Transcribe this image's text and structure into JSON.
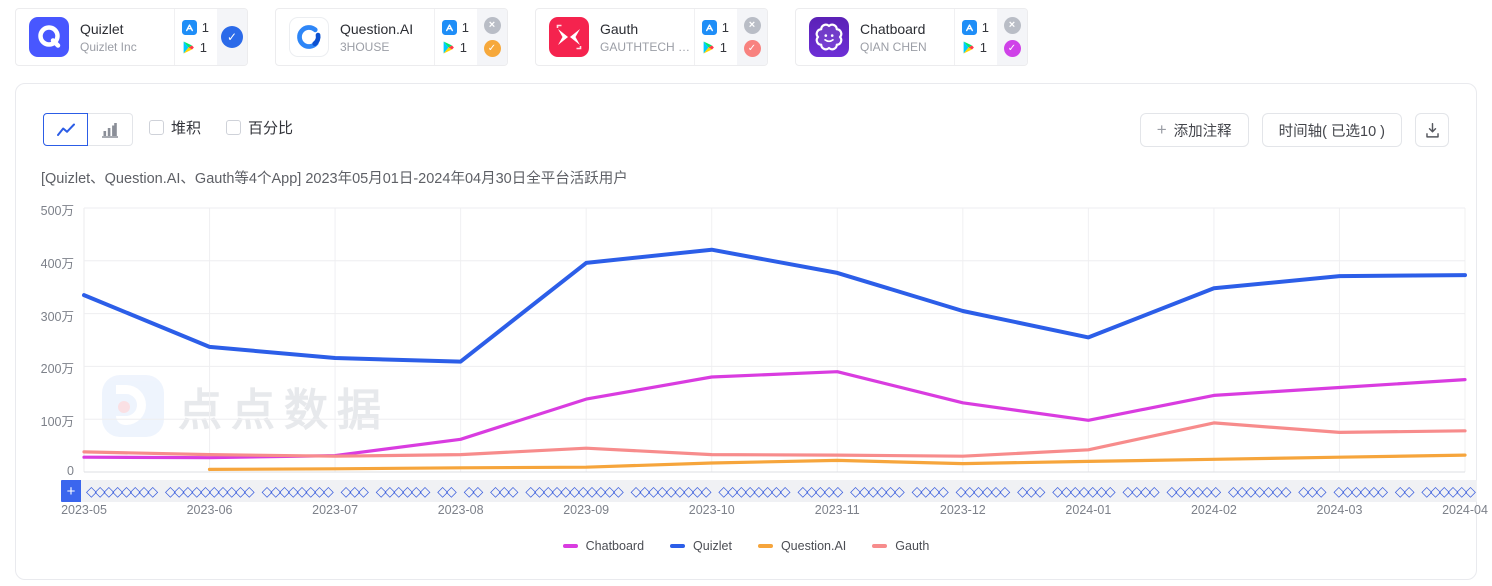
{
  "app_cards": [
    {
      "name": "Quizlet",
      "company": "Quizlet Inc",
      "appstore_count": "1",
      "playstore_count": "1",
      "accent": "#2b6ae9",
      "has_close": false
    },
    {
      "name": "Question.AI",
      "company": "3HOUSE",
      "appstore_count": "1",
      "playstore_count": "1",
      "accent": "#f6a83b",
      "has_close": true
    },
    {
      "name": "Gauth",
      "company": "GAUTHTECH PT...",
      "appstore_count": "1",
      "playstore_count": "1",
      "accent": "#f8827f",
      "has_close": true
    },
    {
      "name": "Chatboard",
      "company": "QIAN CHEN",
      "appstore_count": "1",
      "playstore_count": "1",
      "accent": "#cf42e8",
      "has_close": true
    }
  ],
  "toolbar": {
    "stacked_label": "堆积",
    "percent_label": "百分比",
    "add_annotation_label": "添加注释",
    "timeline_label": "时间轴( 已选10 )"
  },
  "chart_title": "[Quizlet、Question.AI、Gauth等4个App]  2023年05月01日-2024年04月30日全平台活跃用户",
  "watermark_text": "点点数据",
  "annotation_strip": {
    "add_label": "+",
    "pattern": "◇◇◇◇◇◇◇◇ ◇◇◇◇◇◇◇◇◇◇ ◇◇◇◇◇◇◇◇ ◇◇◇ ◇◇◇◇◇◇ ◇◇ ◇◇ ◇◇◇ ◇◇◇◇◇◇◇◇◇◇◇ ◇◇◇◇◇◇◇◇◇ ◇◇◇◇◇◇◇◇ ◇◇◇◇◇ ◇◇◇◇◇◇ ◇◇◇◇ ◇◇◇◇◇◇ ◇◇◇ ◇◇◇◇◇◇◇ ◇◇◇◇ ◇◇◇◇◇◇ ◇◇◇◇◇◇◇ ◇◇◇ ◇◇◇◇◇◇ ◇◇ ◇◇◇◇◇◇ ◇◇◇◇ ◇◇◇◇◇"
  },
  "chart_data": {
    "type": "line",
    "title": "[Quizlet、Question.AI、Gauth等4个App] 2023年05月01日-2024年04月30日全平台活跃用户",
    "unit": "万",
    "x": [
      "2023-05",
      "2023-06",
      "2023-07",
      "2023-08",
      "2023-09",
      "2023-10",
      "2023-11",
      "2023-12",
      "2024-01",
      "2024-02",
      "2024-03",
      "2024-04"
    ],
    "y_ticks": [
      "500万",
      "400万",
      "300万",
      "200万",
      "100万",
      "0"
    ],
    "ylim": [
      0,
      500
    ],
    "grid": true,
    "legend_position": "bottom",
    "series": [
      {
        "name": "Chatboard",
        "color": "#d93ce0",
        "values": [
          28,
          27,
          31,
          62,
          138,
          180,
          190,
          131,
          98,
          145,
          160,
          175
        ]
      },
      {
        "name": "Quizlet",
        "color": "#2c5ee8",
        "values": [
          335,
          237,
          216,
          209,
          396,
          421,
          377,
          305,
          255,
          348,
          371,
          373
        ]
      },
      {
        "name": "Question.AI",
        "color": "#f6a53c",
        "values": [
          null,
          5,
          6,
          8,
          9,
          17,
          22,
          16,
          20,
          24,
          28,
          32
        ]
      },
      {
        "name": "Gauth",
        "color": "#f78c8c",
        "values": [
          38,
          33,
          30,
          33,
          45,
          33,
          32,
          30,
          42,
          93,
          75,
          78
        ]
      }
    ]
  }
}
